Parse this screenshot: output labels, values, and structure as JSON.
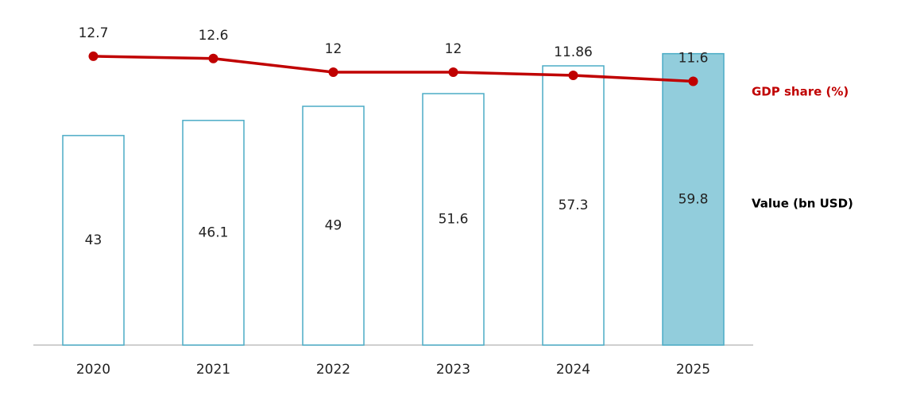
{
  "chart_data": {
    "type": "bar",
    "categories": [
      "2020",
      "2021",
      "2022",
      "2023",
      "2024",
      "2025"
    ],
    "ylim": [
      0,
      70
    ],
    "y2lim": [
      0,
      15
    ],
    "series": [
      {
        "name": "Value (bn USD)",
        "type": "bar",
        "color": "#4bacc6",
        "fills": [
          "#ffffff",
          "#ffffff",
          "#ffffff",
          "#ffffff",
          "#ffffff",
          "#92cddc"
        ],
        "values": [
          43,
          46.1,
          49,
          51.6,
          57.3,
          59.8
        ]
      },
      {
        "name": "GDP share (%)",
        "type": "line",
        "axis": "y2",
        "color": "#c00000",
        "values": [
          12.7,
          12.6,
          12,
          12,
          11.86,
          11.6
        ]
      }
    ]
  }
}
